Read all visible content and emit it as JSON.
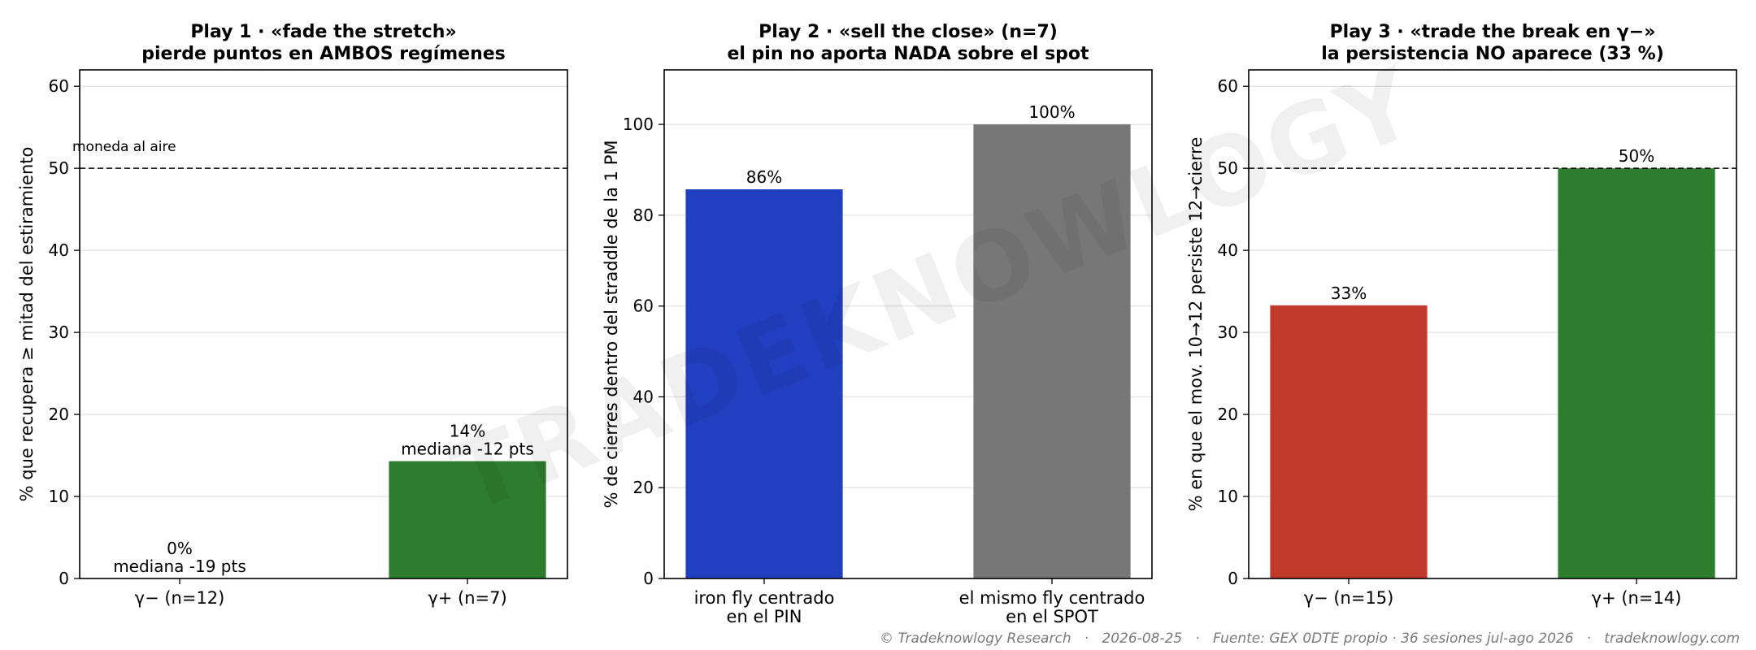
{
  "watermark": "TRADEKNOWLOGY",
  "footer": "© Tradeknowlogy Research   ·   2026-08-25   ·   Fuente: GEX 0DTE propio · 36 sesiones jul-ago 2026   ·   tradeknowlogy.com",
  "chart_data": [
    {
      "type": "bar",
      "title": [
        "Play 1 · «fade the stretch»",
        "pierde puntos en AMBOS regímenes"
      ],
      "ylabel": "% que recupera ≥ mitad del estiramiento",
      "ylim": [
        0,
        62
      ],
      "yticks": [
        0,
        10,
        20,
        30,
        40,
        50,
        60
      ],
      "categories": [
        [
          "γ− (n=12)"
        ],
        [
          "γ+ (n=7)"
        ]
      ],
      "values": [
        0,
        14.3
      ],
      "colors": [
        "#2e7d2e",
        "#2e7d2e"
      ],
      "data_labels": [
        [
          "0%",
          "mediana -19 pts"
        ],
        [
          "14%",
          "mediana -12 pts"
        ]
      ],
      "reference_line": {
        "y": 50,
        "label": "moneda al aire"
      },
      "grid": "horizontal"
    },
    {
      "type": "bar",
      "title": [
        "Play 2 · «sell the close» (n=7)",
        "el pin no aporta NADA sobre el spot"
      ],
      "ylabel": "% de cierres dentro del straddle de la 1 PM",
      "ylim": [
        0,
        112
      ],
      "yticks": [
        0,
        20,
        40,
        60,
        80,
        100
      ],
      "categories": [
        [
          "iron fly centrado",
          "en el PIN"
        ],
        [
          "el mismo fly centrado",
          "en el SPOT"
        ]
      ],
      "values": [
        85.7,
        100
      ],
      "colors": [
        "#213fc1",
        "#777777"
      ],
      "data_labels": [
        [
          "86%"
        ],
        [
          "100%"
        ]
      ],
      "grid": "horizontal"
    },
    {
      "type": "bar",
      "title": [
        "Play 3 · «trade the break en γ−»",
        "la persistencia NO aparece (33 %)"
      ],
      "ylabel": "% en que el mov. 10→12 persiste 12→cierre",
      "ylim": [
        0,
        62
      ],
      "yticks": [
        0,
        10,
        20,
        30,
        40,
        50,
        60
      ],
      "categories": [
        [
          "γ− (n=15)"
        ],
        [
          "γ+ (n=14)"
        ]
      ],
      "values": [
        33.3,
        50
      ],
      "colors": [
        "#c0392b",
        "#2e7d2e"
      ],
      "data_labels": [
        [
          "33%"
        ],
        [
          "50%"
        ]
      ],
      "reference_line": {
        "y": 50,
        "label": ""
      },
      "grid": "horizontal"
    }
  ]
}
